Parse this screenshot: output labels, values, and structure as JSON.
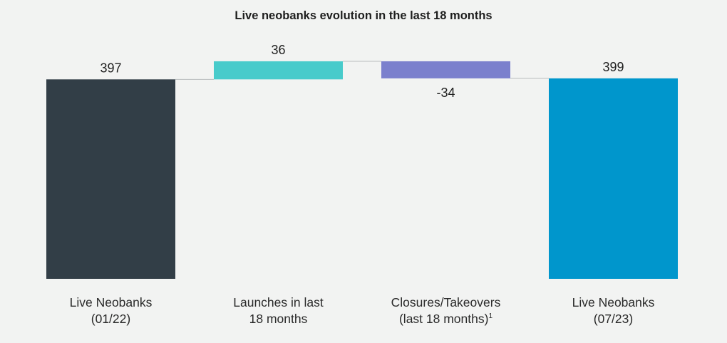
{
  "chart_data": {
    "type": "bar",
    "subtype": "waterfall",
    "title": "Live neobanks evolution in the last 18 months",
    "categories": [
      {
        "lines": [
          "Live Neobanks",
          "(01/22)"
        ],
        "superscript": ""
      },
      {
        "lines": [
          "Launches in last",
          "18 months"
        ],
        "superscript": ""
      },
      {
        "lines": [
          "Closures/Takeovers",
          "(last 18 months)"
        ],
        "superscript": "1"
      },
      {
        "lines": [
          "Live Neobanks",
          "(07/23)"
        ],
        "superscript": ""
      }
    ],
    "bars": [
      {
        "kind": "total",
        "value": 397,
        "label": "397"
      },
      {
        "kind": "delta",
        "value": 36,
        "label": "36"
      },
      {
        "kind": "delta",
        "value": -34,
        "label": "-34"
      },
      {
        "kind": "total",
        "value": 399,
        "label": "399"
      }
    ],
    "xlabel": "",
    "ylabel": "",
    "grid": false,
    "legend": "none"
  },
  "colors": {
    "background": "#f2f3f2",
    "total_start": "#323e47",
    "increase": "#48cbcb",
    "decrease": "#7b80cd",
    "total_end": "#0096cc",
    "connector": "#b9bcbd"
  }
}
